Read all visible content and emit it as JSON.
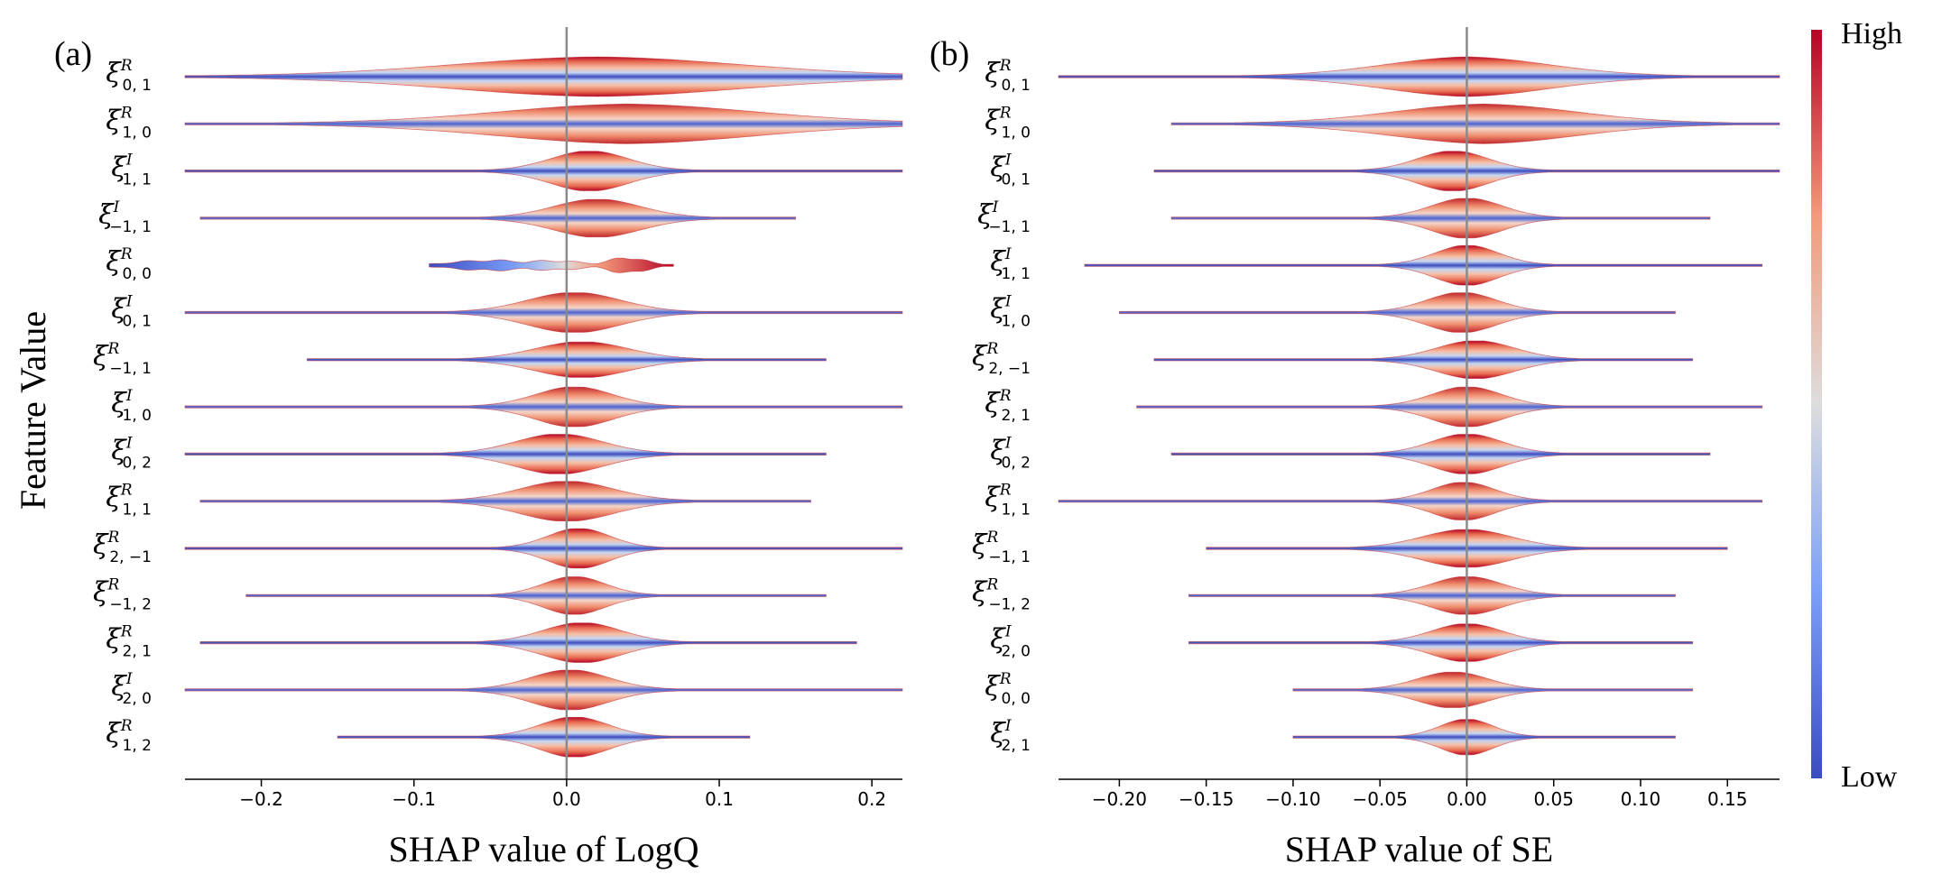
{
  "colorbar": {
    "high_label": "High",
    "low_label": "Low",
    "low_color": "#3b4cc0",
    "mid_color": "#dddddd",
    "high_color": "#b40426"
  },
  "y_axis_title": "Feature Value",
  "chart_data": [
    {
      "type": "violin",
      "panel": "(a)",
      "xlabel": "SHAP value of LogQ",
      "xlim": [
        -0.25,
        0.22
      ],
      "xticks": [
        -0.2,
        -0.1,
        0.0,
        0.1,
        0.2
      ],
      "xtick_labels": [
        "−0.2",
        "−0.1",
        "0.0",
        "0.1",
        "0.2"
      ],
      "features": [
        {
          "sym": "R",
          "sub": "0, 1",
          "center": 0.02,
          "spread": 0.09,
          "amp": 1.0,
          "min": -0.25,
          "max": 0.22,
          "mode": "wide"
        },
        {
          "sym": "R",
          "sub": "1, 0",
          "center": 0.04,
          "spread": 0.08,
          "amp": 1.0,
          "min": -0.25,
          "max": 0.22,
          "mode": "wide"
        },
        {
          "sym": "I",
          "sub": "1, 1",
          "center": 0.015,
          "spread": 0.025,
          "amp": 0.95,
          "min": -0.25,
          "max": 0.22,
          "mode": "normal"
        },
        {
          "sym": "I",
          "sub": "−1, 1",
          "center": 0.02,
          "spread": 0.028,
          "amp": 0.9,
          "min": -0.24,
          "max": 0.15,
          "mode": "normal"
        },
        {
          "sym": "R",
          "sub": "0, 0",
          "center": 0.0,
          "spread": 0.04,
          "amp": 0.45,
          "min": -0.09,
          "max": 0.07,
          "mode": "bimodal"
        },
        {
          "sym": "I",
          "sub": "0, 1",
          "center": 0.005,
          "spread": 0.03,
          "amp": 0.95,
          "min": -0.25,
          "max": 0.22,
          "mode": "normal"
        },
        {
          "sym": "R",
          "sub": "−1, 1",
          "center": 0.01,
          "spread": 0.03,
          "amp": 0.85,
          "min": -0.17,
          "max": 0.17,
          "mode": "normal"
        },
        {
          "sym": "I",
          "sub": "1, 0",
          "center": 0.005,
          "spread": 0.025,
          "amp": 0.95,
          "min": -0.25,
          "max": 0.22,
          "mode": "normal"
        },
        {
          "sym": "I",
          "sub": "0, 2",
          "center": -0.005,
          "spread": 0.028,
          "amp": 0.95,
          "min": -0.25,
          "max": 0.17,
          "mode": "normal"
        },
        {
          "sym": "R",
          "sub": "1, 1",
          "center": 0.0,
          "spread": 0.03,
          "amp": 0.95,
          "min": -0.24,
          "max": 0.16,
          "mode": "normal"
        },
        {
          "sym": "R",
          "sub": "2, −1",
          "center": 0.008,
          "spread": 0.02,
          "amp": 0.95,
          "min": -0.25,
          "max": 0.22,
          "mode": "normal"
        },
        {
          "sym": "R",
          "sub": "−1, 2",
          "center": 0.005,
          "spread": 0.02,
          "amp": 0.9,
          "min": -0.21,
          "max": 0.17,
          "mode": "normal"
        },
        {
          "sym": "R",
          "sub": "2, 1",
          "center": 0.01,
          "spread": 0.025,
          "amp": 0.95,
          "min": -0.24,
          "max": 0.19,
          "mode": "normal"
        },
        {
          "sym": "I",
          "sub": "2, 0",
          "center": 0.002,
          "spread": 0.025,
          "amp": 0.95,
          "min": -0.25,
          "max": 0.22,
          "mode": "normal"
        },
        {
          "sym": "R",
          "sub": "1, 2",
          "center": 0.005,
          "spread": 0.022,
          "amp": 0.95,
          "min": -0.15,
          "max": 0.12,
          "mode": "normal"
        }
      ]
    },
    {
      "type": "violin",
      "panel": "(b)",
      "xlabel": "SHAP value of SE",
      "xlim": [
        -0.235,
        0.18
      ],
      "xticks": [
        -0.2,
        -0.15,
        -0.1,
        -0.05,
        0.0,
        0.05,
        0.1,
        0.15
      ],
      "xtick_labels": [
        "−0.20",
        "−0.15",
        "−0.10",
        "−0.05",
        "0.00",
        "0.05",
        "0.10",
        "0.15"
      ],
      "features": [
        {
          "sym": "R",
          "sub": "0, 1",
          "center": 0.0,
          "spread": 0.045,
          "amp": 1.0,
          "min": -0.235,
          "max": 0.18,
          "mode": "wide"
        },
        {
          "sym": "R",
          "sub": "1, 0",
          "center": 0.01,
          "spread": 0.05,
          "amp": 1.0,
          "min": -0.17,
          "max": 0.18,
          "mode": "wide"
        },
        {
          "sym": "I",
          "sub": "0, 1",
          "center": -0.008,
          "spread": 0.02,
          "amp": 0.95,
          "min": -0.18,
          "max": 0.18,
          "mode": "normal"
        },
        {
          "sym": "I",
          "sub": "−1, 1",
          "center": 0.0,
          "spread": 0.02,
          "amp": 0.95,
          "min": -0.17,
          "max": 0.14,
          "mode": "normal"
        },
        {
          "sym": "I",
          "sub": "1, 1",
          "center": 0.0,
          "spread": 0.018,
          "amp": 0.95,
          "min": -0.22,
          "max": 0.17,
          "mode": "normal"
        },
        {
          "sym": "I",
          "sub": "1, 0",
          "center": -0.003,
          "spread": 0.02,
          "amp": 0.95,
          "min": -0.2,
          "max": 0.12,
          "mode": "normal"
        },
        {
          "sym": "R",
          "sub": "2, −1",
          "center": 0.005,
          "spread": 0.022,
          "amp": 0.9,
          "min": -0.18,
          "max": 0.13,
          "mode": "normal"
        },
        {
          "sym": "R",
          "sub": "2, 1",
          "center": 0.0,
          "spread": 0.02,
          "amp": 0.95,
          "min": -0.19,
          "max": 0.17,
          "mode": "normal"
        },
        {
          "sym": "I",
          "sub": "0, 2",
          "center": 0.0,
          "spread": 0.02,
          "amp": 0.95,
          "min": -0.17,
          "max": 0.14,
          "mode": "normal"
        },
        {
          "sym": "R",
          "sub": "1, 1",
          "center": -0.002,
          "spread": 0.018,
          "amp": 0.9,
          "min": -0.235,
          "max": 0.17,
          "mode": "normal"
        },
        {
          "sym": "R",
          "sub": "−1, 1",
          "center": 0.0,
          "spread": 0.025,
          "amp": 0.9,
          "min": -0.15,
          "max": 0.15,
          "mode": "normal"
        },
        {
          "sym": "R",
          "sub": "−1, 2",
          "center": 0.0,
          "spread": 0.02,
          "amp": 0.9,
          "min": -0.16,
          "max": 0.12,
          "mode": "normal"
        },
        {
          "sym": "I",
          "sub": "2, 0",
          "center": 0.0,
          "spread": 0.02,
          "amp": 0.9,
          "min": -0.16,
          "max": 0.13,
          "mode": "normal"
        },
        {
          "sym": "R",
          "sub": "0, 0",
          "center": -0.008,
          "spread": 0.02,
          "amp": 0.85,
          "min": -0.1,
          "max": 0.13,
          "mode": "normal"
        },
        {
          "sym": "I",
          "sub": "2, 1",
          "center": 0.0,
          "spread": 0.015,
          "amp": 0.85,
          "min": -0.1,
          "max": 0.12,
          "mode": "normal"
        }
      ]
    }
  ]
}
